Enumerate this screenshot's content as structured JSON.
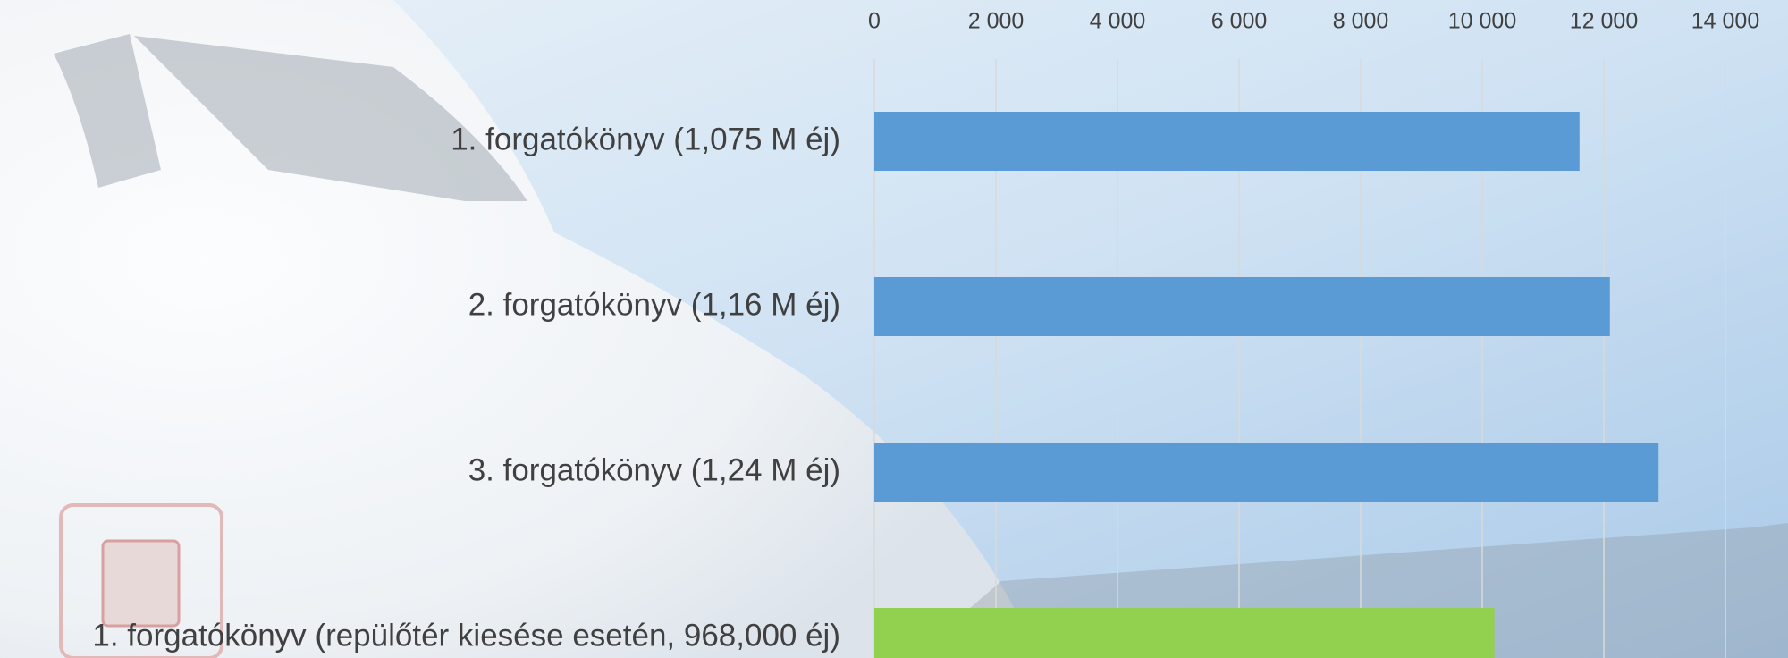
{
  "chart_data": {
    "type": "barh",
    "categories": [
      "1. forgatókönyv (1,075 M éj)",
      "2. forgatókönyv (1,16 M éj)",
      "3. forgatókönyv (1,24 M éj)",
      "1. forgatókönyv (repülőtér kiesése esetén, 968,000 éj)"
    ],
    "values": [
      11600,
      12100,
      12900,
      10200
    ],
    "colors": [
      "#5b9bd5",
      "#5b9bd5",
      "#5b9bd5",
      "#92d050"
    ],
    "xlim": [
      0,
      14000
    ],
    "xticks": [
      0,
      {
        "value": 2000,
        "label": "2 000"
      },
      {
        "value": 4000,
        "label": "4 000"
      },
      {
        "value": 6000,
        "label": "6 000"
      },
      {
        "value": 8000,
        "label": "8 000"
      },
      {
        "value": 10000,
        "label": "10 000"
      },
      {
        "value": 12000,
        "label": "12 000"
      },
      {
        "value": 14000,
        "label": "14 000"
      }
    ],
    "grid": true
  }
}
